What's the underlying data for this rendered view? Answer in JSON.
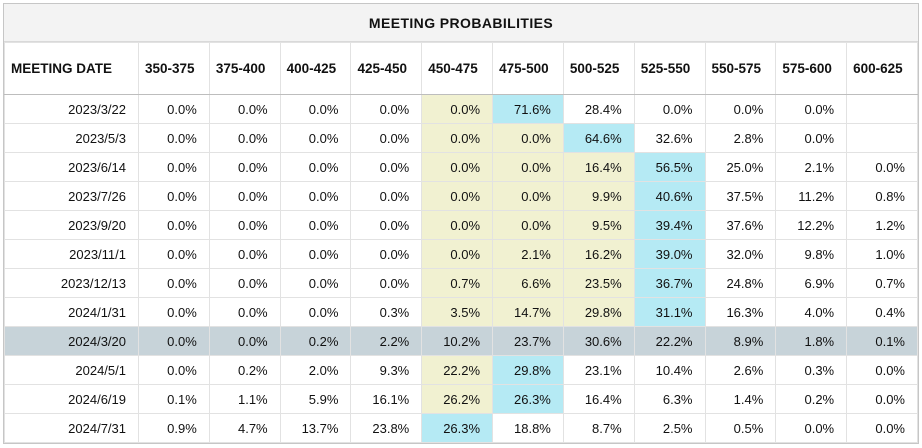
{
  "title": "MEETING PROBABILITIES",
  "colors": {
    "title_bg": "#f3f3f3",
    "border": "#e2e2e2",
    "header_border": "#bdbdbd",
    "text": "#111111",
    "highlight_yellow": "#f1f1d1",
    "highlight_cyan": "#b5eaf4",
    "selected_row": "#c7d3d9"
  },
  "table": {
    "date_header": "MEETING DATE",
    "rate_columns": [
      "350-375",
      "375-400",
      "400-425",
      "425-450",
      "450-475",
      "475-500",
      "500-525",
      "525-550",
      "550-575",
      "575-600",
      "600-625"
    ],
    "rows": [
      {
        "date": "2023/3/22",
        "values": [
          "0.0%",
          "0.0%",
          "0.0%",
          "0.0%",
          "0.0%",
          "71.6%",
          "28.4%",
          "0.0%",
          "0.0%",
          "0.0%",
          ""
        ],
        "yellow": [
          4
        ],
        "cyan": [
          5
        ],
        "selected": false
      },
      {
        "date": "2023/5/3",
        "values": [
          "0.0%",
          "0.0%",
          "0.0%",
          "0.0%",
          "0.0%",
          "0.0%",
          "64.6%",
          "32.6%",
          "2.8%",
          "0.0%",
          ""
        ],
        "yellow": [
          4,
          5
        ],
        "cyan": [
          6
        ],
        "selected": false
      },
      {
        "date": "2023/6/14",
        "values": [
          "0.0%",
          "0.0%",
          "0.0%",
          "0.0%",
          "0.0%",
          "0.0%",
          "16.4%",
          "56.5%",
          "25.0%",
          "2.1%",
          "0.0%"
        ],
        "yellow": [
          4,
          5,
          6
        ],
        "cyan": [
          7
        ],
        "selected": false
      },
      {
        "date": "2023/7/26",
        "values": [
          "0.0%",
          "0.0%",
          "0.0%",
          "0.0%",
          "0.0%",
          "0.0%",
          "9.9%",
          "40.6%",
          "37.5%",
          "11.2%",
          "0.8%"
        ],
        "yellow": [
          4,
          5,
          6
        ],
        "cyan": [
          7
        ],
        "selected": false
      },
      {
        "date": "2023/9/20",
        "values": [
          "0.0%",
          "0.0%",
          "0.0%",
          "0.0%",
          "0.0%",
          "0.0%",
          "9.5%",
          "39.4%",
          "37.6%",
          "12.2%",
          "1.2%"
        ],
        "yellow": [
          4,
          5,
          6
        ],
        "cyan": [
          7
        ],
        "selected": false
      },
      {
        "date": "2023/11/1",
        "values": [
          "0.0%",
          "0.0%",
          "0.0%",
          "0.0%",
          "0.0%",
          "2.1%",
          "16.2%",
          "39.0%",
          "32.0%",
          "9.8%",
          "1.0%"
        ],
        "yellow": [
          4,
          5,
          6
        ],
        "cyan": [
          7
        ],
        "selected": false
      },
      {
        "date": "2023/12/13",
        "values": [
          "0.0%",
          "0.0%",
          "0.0%",
          "0.0%",
          "0.7%",
          "6.6%",
          "23.5%",
          "36.7%",
          "24.8%",
          "6.9%",
          "0.7%"
        ],
        "yellow": [
          4,
          5,
          6
        ],
        "cyan": [
          7
        ],
        "selected": false
      },
      {
        "date": "2024/1/31",
        "values": [
          "0.0%",
          "0.0%",
          "0.0%",
          "0.3%",
          "3.5%",
          "14.7%",
          "29.8%",
          "31.1%",
          "16.3%",
          "4.0%",
          "0.4%"
        ],
        "yellow": [
          4,
          5,
          6
        ],
        "cyan": [
          7
        ],
        "selected": false
      },
      {
        "date": "2024/3/20",
        "values": [
          "0.0%",
          "0.0%",
          "0.2%",
          "2.2%",
          "10.2%",
          "23.7%",
          "30.6%",
          "22.2%",
          "8.9%",
          "1.8%",
          "0.1%"
        ],
        "yellow": [],
        "cyan": [],
        "selected": true
      },
      {
        "date": "2024/5/1",
        "values": [
          "0.0%",
          "0.2%",
          "2.0%",
          "9.3%",
          "22.2%",
          "29.8%",
          "23.1%",
          "10.4%",
          "2.6%",
          "0.3%",
          "0.0%"
        ],
        "yellow": [
          4
        ],
        "cyan": [
          5
        ],
        "selected": false
      },
      {
        "date": "2024/6/19",
        "values": [
          "0.1%",
          "1.1%",
          "5.9%",
          "16.1%",
          "26.2%",
          "26.3%",
          "16.4%",
          "6.3%",
          "1.4%",
          "0.2%",
          "0.0%"
        ],
        "yellow": [
          4
        ],
        "cyan": [
          5
        ],
        "selected": false
      },
      {
        "date": "2024/7/31",
        "values": [
          "0.9%",
          "4.7%",
          "13.7%",
          "23.8%",
          "26.3%",
          "18.8%",
          "8.7%",
          "2.5%",
          "0.5%",
          "0.0%",
          "0.0%"
        ],
        "yellow": [],
        "cyan": [
          4
        ],
        "selected": false
      }
    ]
  },
  "chart_data": {
    "type": "table",
    "title": "MEETING PROBABILITIES",
    "columns": [
      "MEETING DATE",
      "350-375",
      "375-400",
      "400-425",
      "425-450",
      "450-475",
      "475-500",
      "500-525",
      "525-550",
      "550-575",
      "575-600",
      "600-625"
    ],
    "rows": [
      [
        "2023/3/22",
        "0.0%",
        "0.0%",
        "0.0%",
        "0.0%",
        "0.0%",
        "71.6%",
        "28.4%",
        "0.0%",
        "0.0%",
        "0.0%",
        ""
      ],
      [
        "2023/5/3",
        "0.0%",
        "0.0%",
        "0.0%",
        "0.0%",
        "0.0%",
        "0.0%",
        "64.6%",
        "32.6%",
        "2.8%",
        "0.0%",
        ""
      ],
      [
        "2023/6/14",
        "0.0%",
        "0.0%",
        "0.0%",
        "0.0%",
        "0.0%",
        "0.0%",
        "16.4%",
        "56.5%",
        "25.0%",
        "2.1%",
        "0.0%"
      ],
      [
        "2023/7/26",
        "0.0%",
        "0.0%",
        "0.0%",
        "0.0%",
        "0.0%",
        "0.0%",
        "9.9%",
        "40.6%",
        "37.5%",
        "11.2%",
        "0.8%"
      ],
      [
        "2023/9/20",
        "0.0%",
        "0.0%",
        "0.0%",
        "0.0%",
        "0.0%",
        "0.0%",
        "9.5%",
        "39.4%",
        "37.6%",
        "12.2%",
        "1.2%"
      ],
      [
        "2023/11/1",
        "0.0%",
        "0.0%",
        "0.0%",
        "0.0%",
        "0.0%",
        "2.1%",
        "16.2%",
        "39.0%",
        "32.0%",
        "9.8%",
        "1.0%"
      ],
      [
        "2023/12/13",
        "0.0%",
        "0.0%",
        "0.0%",
        "0.0%",
        "0.7%",
        "6.6%",
        "23.5%",
        "36.7%",
        "24.8%",
        "6.9%",
        "0.7%"
      ],
      [
        "2024/1/31",
        "0.0%",
        "0.0%",
        "0.0%",
        "0.3%",
        "3.5%",
        "14.7%",
        "29.8%",
        "31.1%",
        "16.3%",
        "4.0%",
        "0.4%"
      ],
      [
        "2024/3/20",
        "0.0%",
        "0.0%",
        "0.2%",
        "2.2%",
        "10.2%",
        "23.7%",
        "30.6%",
        "22.2%",
        "8.9%",
        "1.8%",
        "0.1%"
      ],
      [
        "2024/5/1",
        "0.0%",
        "0.2%",
        "2.0%",
        "9.3%",
        "22.2%",
        "29.8%",
        "23.1%",
        "10.4%",
        "2.6%",
        "0.3%",
        "0.0%"
      ],
      [
        "2024/6/19",
        "0.1%",
        "1.1%",
        "5.9%",
        "16.1%",
        "26.2%",
        "26.3%",
        "16.4%",
        "6.3%",
        "1.4%",
        "0.2%",
        "0.0%"
      ],
      [
        "2024/7/31",
        "0.9%",
        "4.7%",
        "13.7%",
        "23.8%",
        "26.3%",
        "18.8%",
        "8.7%",
        "2.5%",
        "0.5%",
        "0.0%",
        "0.0%"
      ]
    ]
  }
}
